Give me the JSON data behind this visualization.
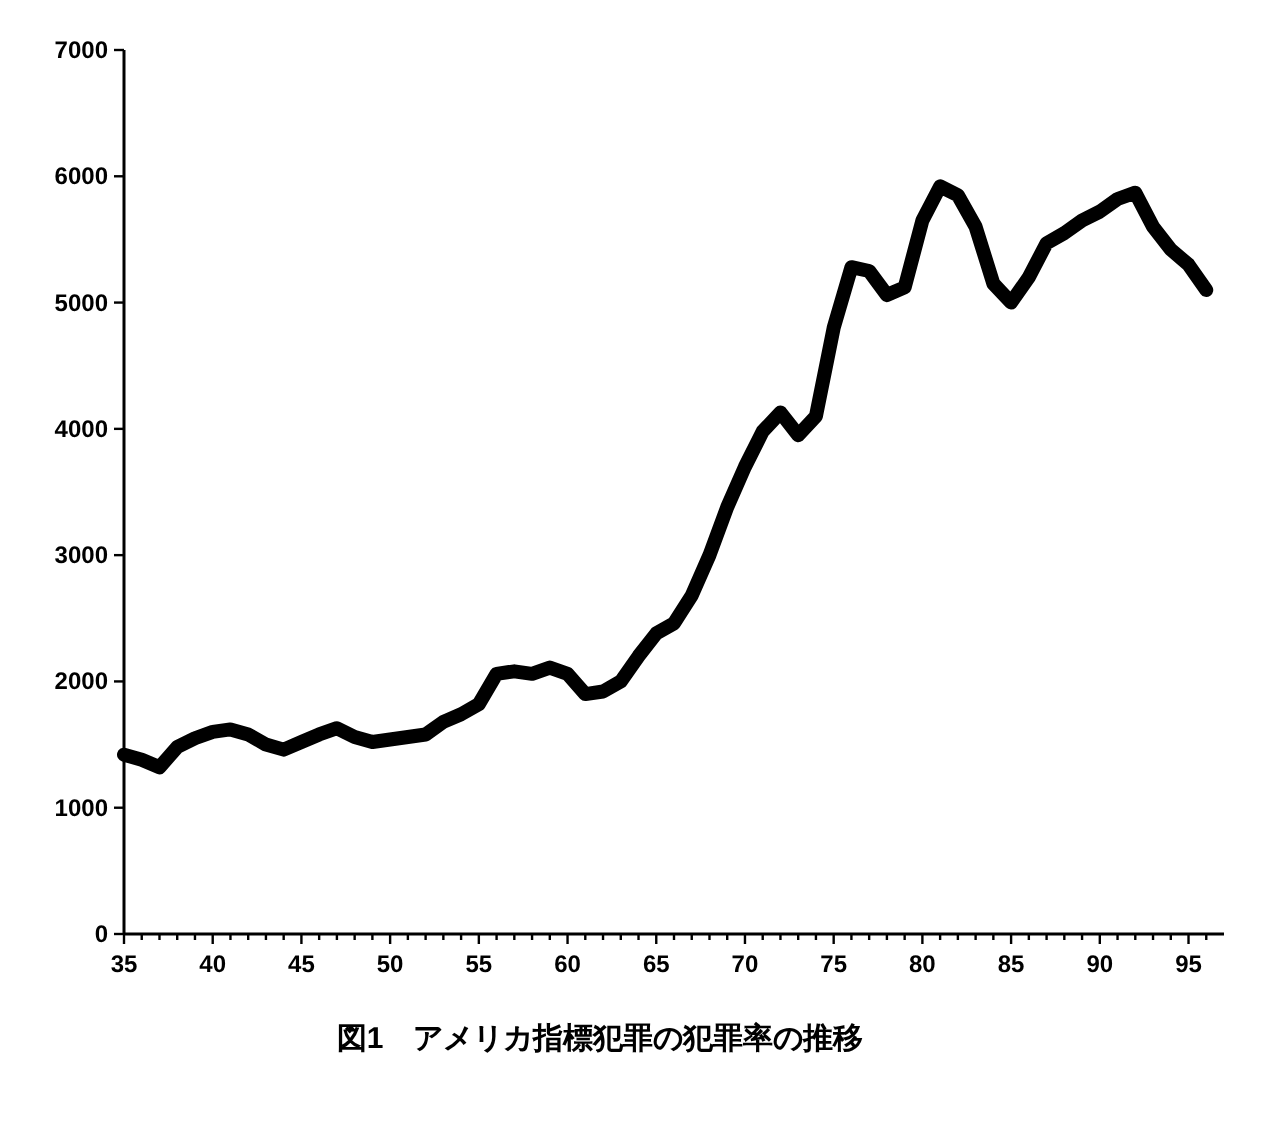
{
  "chart_data": {
    "type": "line",
    "title": "図1　アメリカ指標犯罪の犯罪率の推移",
    "x": [
      35,
      36,
      37,
      38,
      39,
      40,
      41,
      42,
      43,
      44,
      45,
      46,
      47,
      48,
      49,
      50,
      51,
      52,
      53,
      54,
      55,
      56,
      57,
      58,
      59,
      60,
      61,
      62,
      63,
      64,
      65,
      66,
      67,
      68,
      69,
      70,
      71,
      72,
      73,
      74,
      75,
      76,
      77,
      78,
      79,
      80,
      81,
      82,
      83,
      84,
      85,
      86,
      87,
      88,
      89,
      90,
      91,
      92,
      93,
      94,
      95,
      96
    ],
    "series": [
      {
        "color": "#000000",
        "values": [
          1420,
          1380,
          1320,
          1480,
          1550,
          1600,
          1620,
          1580,
          1500,
          1460,
          1520,
          1580,
          1630,
          1560,
          1520,
          1540,
          1560,
          1580,
          1680,
          1740,
          1820,
          2060,
          2080,
          2060,
          2110,
          2060,
          1900,
          1920,
          2000,
          2200,
          2380,
          2460,
          2680,
          3000,
          3380,
          3700,
          3980,
          4130,
          3950,
          4100,
          4800,
          5280,
          5250,
          5060,
          5120,
          5650,
          5920,
          5850,
          5600,
          5150,
          5000,
          5200,
          5470,
          5550,
          5650,
          5720,
          5820,
          5870,
          5600,
          5420,
          5300,
          5100
        ]
      }
    ],
    "xlim": [
      35,
      97
    ],
    "ylim": [
      0,
      7000
    ],
    "xticks": [
      35,
      {
        "value": 36,
        "label": null
      },
      {
        "value": 37,
        "label": null
      },
      {
        "value": 38,
        "label": null
      },
      {
        "value": 39,
        "label": null
      },
      40,
      {
        "value": 41,
        "label": null
      },
      {
        "value": 42,
        "label": null
      },
      {
        "value": 43,
        "label": null
      },
      {
        "value": 44,
        "label": null
      },
      45,
      {
        "value": 46,
        "label": null
      },
      {
        "value": 47,
        "label": null
      },
      {
        "value": 48,
        "label": null
      },
      {
        "value": 49,
        "label": null
      },
      50,
      {
        "value": 51,
        "label": null
      },
      {
        "value": 52,
        "label": null
      },
      {
        "value": 53,
        "label": null
      },
      {
        "value": 54,
        "label": null
      },
      55,
      {
        "value": 56,
        "label": null
      },
      {
        "value": 57,
        "label": null
      },
      {
        "value": 58,
        "label": null
      },
      {
        "value": 59,
        "label": null
      },
      60,
      {
        "value": 61,
        "label": null
      },
      {
        "value": 62,
        "label": null
      },
      {
        "value": 63,
        "label": null
      },
      {
        "value": 64,
        "label": null
      },
      65,
      {
        "value": 66,
        "label": null
      },
      {
        "value": 67,
        "label": null
      },
      {
        "value": 68,
        "label": null
      },
      {
        "value": 69,
        "label": null
      },
      70,
      {
        "value": 71,
        "label": null
      },
      {
        "value": 72,
        "label": null
      },
      {
        "value": 73,
        "label": null
      },
      {
        "value": 74,
        "label": null
      },
      75,
      {
        "value": 76,
        "label": null
      },
      {
        "value": 77,
        "label": null
      },
      {
        "value": 78,
        "label": null
      },
      {
        "value": 79,
        "label": null
      },
      80,
      {
        "value": 81,
        "label": null
      },
      {
        "value": 82,
        "label": null
      },
      {
        "value": 83,
        "label": null
      },
      {
        "value": 84,
        "label": null
      },
      85,
      {
        "value": 86,
        "label": null
      },
      {
        "value": 87,
        "label": null
      },
      {
        "value": 88,
        "label": null
      },
      {
        "value": 89,
        "label": null
      },
      90,
      {
        "value": 91,
        "label": null
      },
      {
        "value": 92,
        "label": null
      },
      {
        "value": 93,
        "label": null
      },
      {
        "value": 94,
        "label": null
      },
      95,
      {
        "value": 96,
        "label": null
      }
    ],
    "yticks": [
      0,
      1000,
      2000,
      3000,
      4000,
      5000,
      6000,
      7000
    ],
    "grid": false,
    "marker": "none",
    "line_style": "solid"
  }
}
